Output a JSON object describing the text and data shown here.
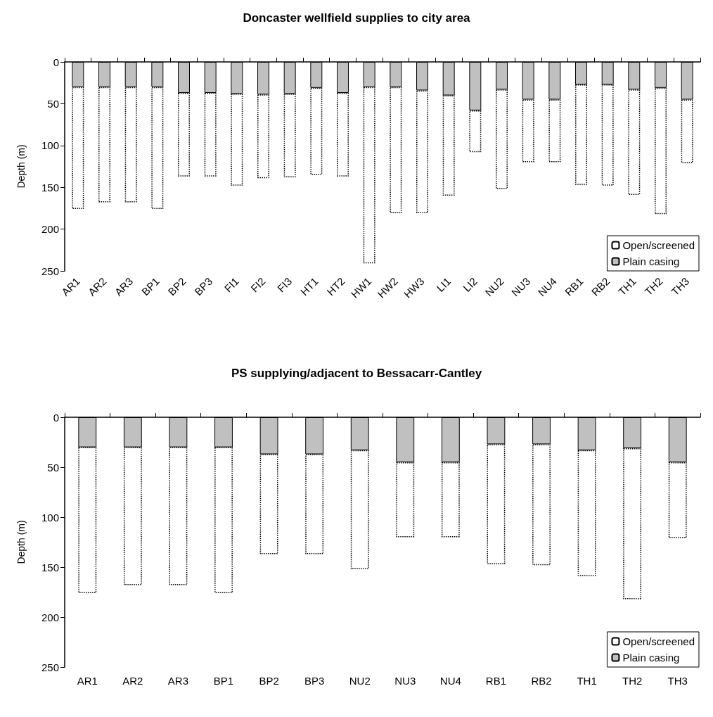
{
  "chart_data": [
    {
      "type": "bar",
      "title": "Doncaster wellfield supplies to city area",
      "ylabel": "Depth (m)",
      "stacked": true,
      "categories": [
        "AR1",
        "AR2",
        "AR3",
        "BP1",
        "BP2",
        "BP3",
        "FI1",
        "FI2",
        "FI3",
        "HT1",
        "HT2",
        "HW1",
        "HW2",
        "HW3",
        "LI1",
        "LI2",
        "NU2",
        "NU3",
        "NU4",
        "RB1",
        "RB2",
        "TH1",
        "TH2",
        "TH3"
      ],
      "series": [
        {
          "name": "Plain casing",
          "color": "#c0c0c0",
          "values": [
            30,
            30,
            30,
            30,
            37,
            37,
            38,
            39,
            38,
            31,
            37,
            30,
            30,
            34,
            40,
            58,
            33,
            45,
            45,
            27,
            27,
            33,
            31,
            45
          ]
        },
        {
          "name": "Open/screened",
          "color": "#ffffff",
          "line_style": "dotted",
          "values": [
            146,
            138,
            138,
            146,
            100,
            100,
            110,
            100,
            100,
            104,
            100,
            211,
            151,
            147,
            120,
            50,
            119,
            75,
            75,
            120,
            121,
            126,
            151,
            76
          ]
        }
      ],
      "ylim": [
        250,
        0
      ],
      "yticks": [
        0,
        50,
        100,
        150,
        200,
        250
      ],
      "grid": false,
      "legend": "bottom right"
    },
    {
      "type": "bar",
      "title": "PS supplying/adjacent to Bessacarr-Cantley",
      "ylabel": "Depth (m)",
      "stacked": true,
      "categories": [
        "AR1",
        "AR2",
        "AR3",
        "BP1",
        "BP2",
        "BP3",
        "NU2",
        "NU3",
        "NU4",
        "RB1",
        "RB2",
        "TH1",
        "TH2",
        "TH3"
      ],
      "series": [
        {
          "name": "Plain casing",
          "color": "#c0c0c0",
          "values": [
            30,
            30,
            30,
            30,
            37,
            37,
            33,
            45,
            45,
            27,
            27,
            33,
            31,
            45
          ]
        },
        {
          "name": "Open/screened",
          "color": "#ffffff",
          "line_style": "dotted",
          "values": [
            146,
            138,
            138,
            146,
            100,
            100,
            119,
            75,
            75,
            120,
            121,
            126,
            151,
            76
          ]
        }
      ],
      "ylim": [
        250,
        0
      ],
      "yticks": [
        0,
        50,
        100,
        150,
        200,
        250
      ],
      "grid": false,
      "legend": "bottom right"
    }
  ]
}
